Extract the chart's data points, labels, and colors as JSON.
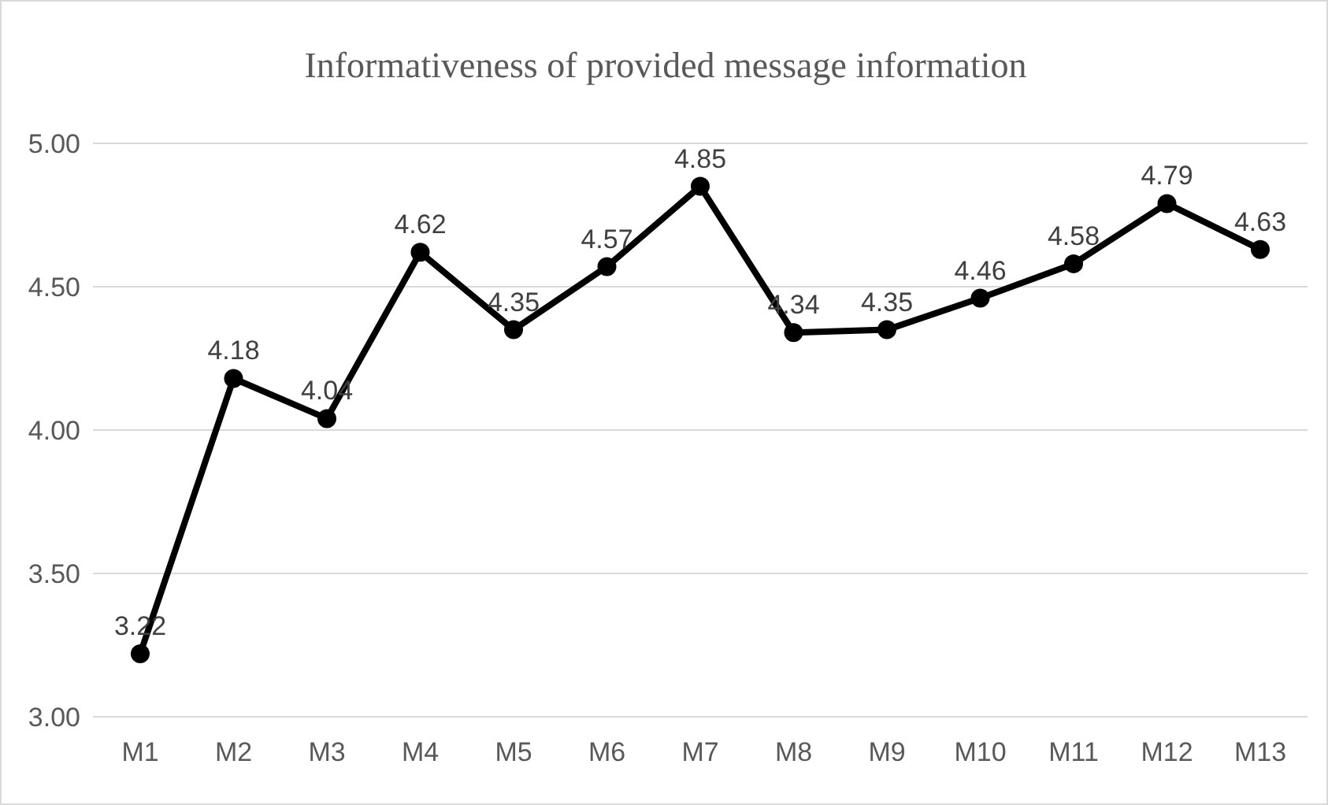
{
  "chart_data": {
    "type": "line",
    "title": "Informativeness of provided message information",
    "categories": [
      "M1",
      "M2",
      "M3",
      "M4",
      "M5",
      "M6",
      "M7",
      "M8",
      "M9",
      "M10",
      "M11",
      "M12",
      "M13"
    ],
    "series": [
      {
        "color": "#000000",
        "values": [
          3.22,
          4.18,
          4.04,
          4.62,
          4.35,
          4.57,
          4.85,
          4.34,
          4.35,
          4.46,
          4.58,
          4.79,
          4.63
        ]
      }
    ],
    "ylim": [
      3,
      5
    ],
    "yticks": [
      {
        "value": 3,
        "label": "3.00"
      },
      {
        "value": 3.5,
        "label": "3.50"
      },
      {
        "value": 4,
        "label": "4.00"
      },
      {
        "value": 4.5,
        "label": "4.50"
      },
      {
        "value": 5,
        "label": "5.00"
      }
    ],
    "grid": "y",
    "legend": false,
    "marker": "circle",
    "line_style": "solid",
    "data_labels": true
  }
}
